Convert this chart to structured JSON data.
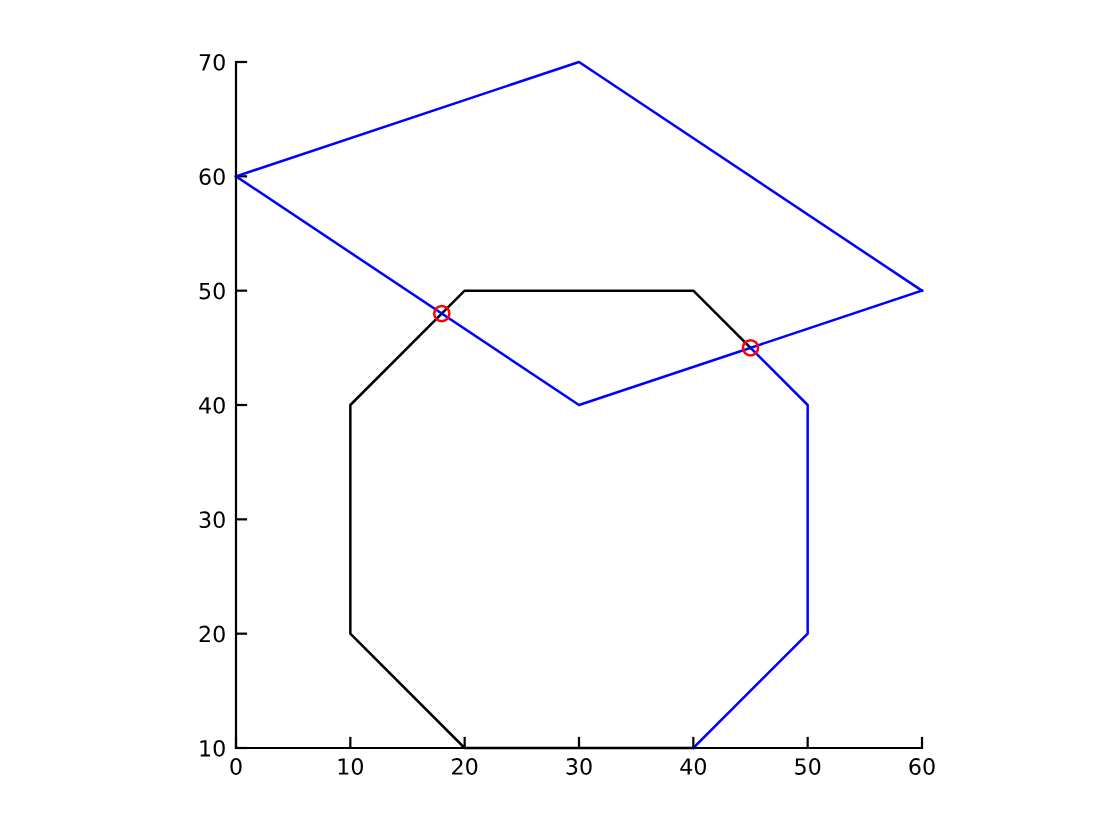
{
  "chart_data": {
    "type": "line",
    "xlim": [
      0,
      60
    ],
    "ylim": [
      10,
      70
    ],
    "xticks": [
      0,
      10,
      20,
      30,
      40,
      50,
      60
    ],
    "yticks": [
      10,
      20,
      30,
      40,
      50,
      60,
      70
    ],
    "grid": false,
    "legend": false,
    "marker": "none",
    "line_style": "solid",
    "series": [
      {
        "color": "#000000",
        "x": [
          45,
          40,
          20,
          10,
          10,
          20,
          40
        ],
        "values": [
          45,
          50,
          50,
          40,
          20,
          10,
          10
        ]
      },
      {
        "color": "#0000ff",
        "x": [
          40,
          50,
          50,
          45
        ],
        "values": [
          10,
          20,
          40,
          45
        ]
      },
      {
        "color": "#0000ff",
        "x": [
          0,
          30,
          60
        ],
        "values": [
          60,
          70,
          50
        ]
      },
      {
        "color": "#0000ff",
        "x": [
          60,
          30,
          0
        ],
        "values": [
          50,
          40,
          60
        ]
      },
      {
        "type": "scatter",
        "color": "#ff0000",
        "marker": "circle",
        "x": [
          18,
          45
        ],
        "values": [
          48,
          45
        ]
      }
    ]
  }
}
